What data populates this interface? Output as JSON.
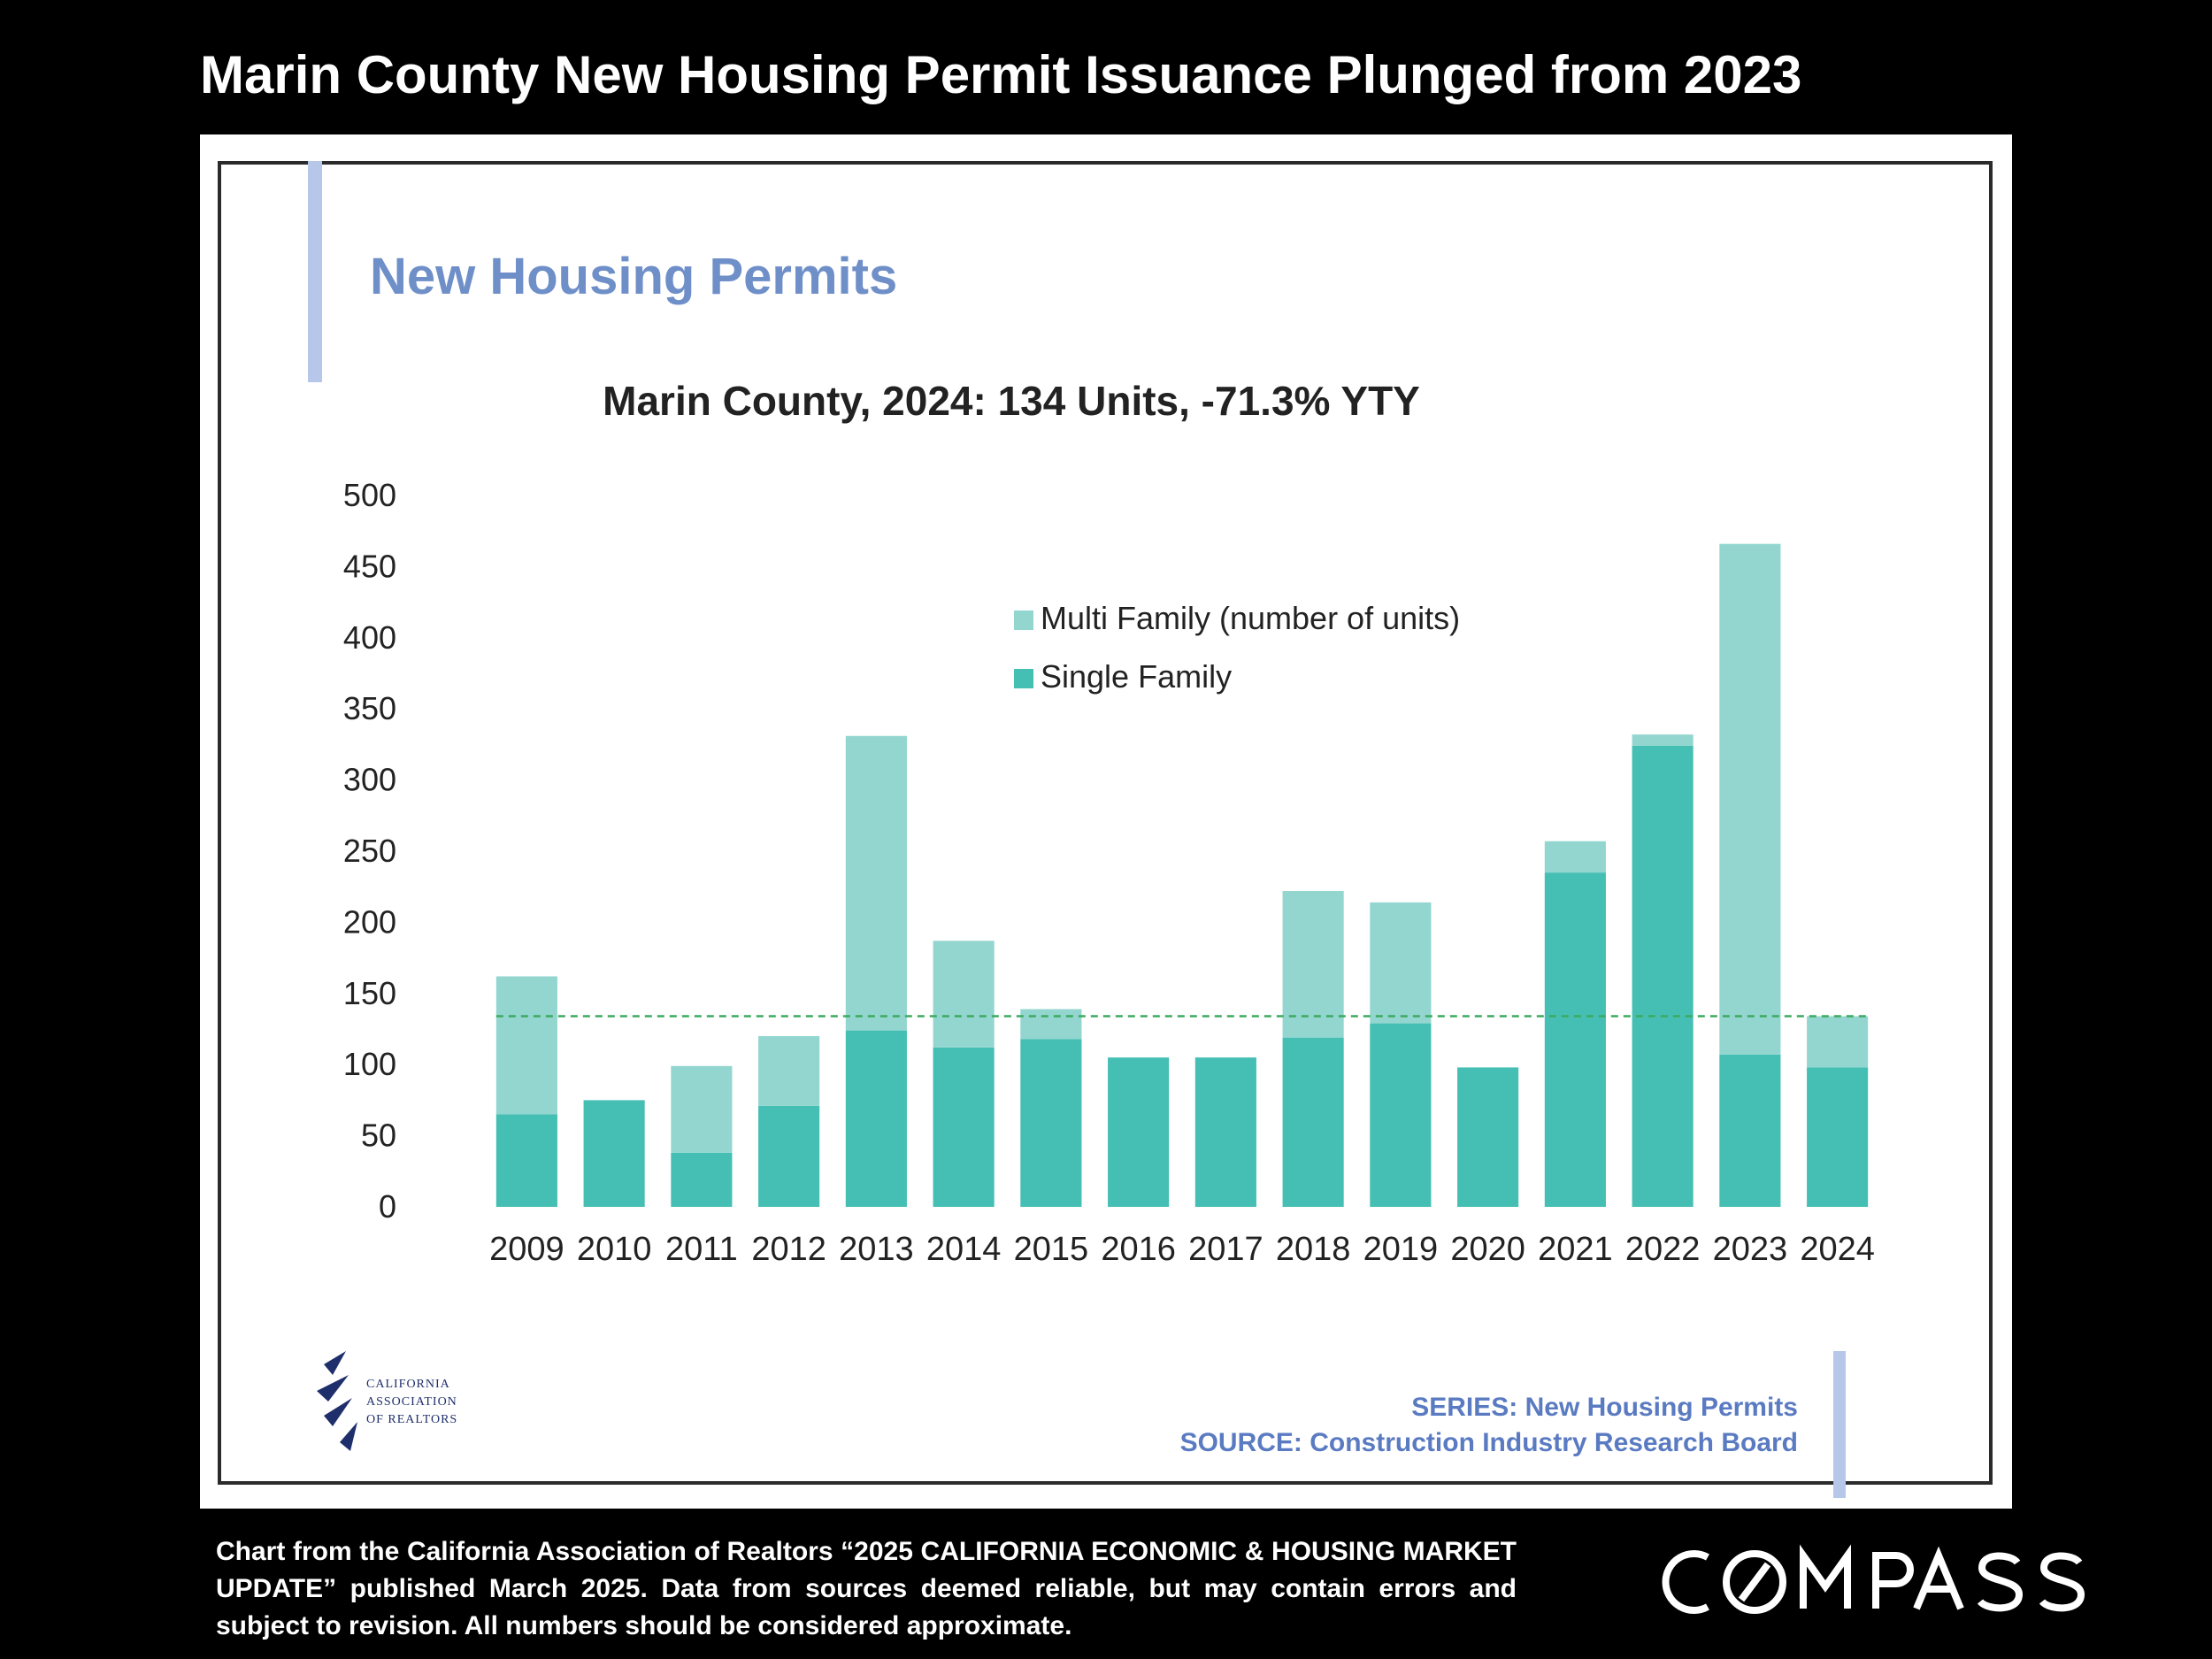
{
  "slide": {
    "title": "Marin County New Housing Permit Issuance Plunged from 2023",
    "caption": "Chart from the California Association of Realtors “2025 CALIFORNIA ECONOMIC & HOUSING MARKET UPDATE” published March 2025. Data from sources deemed reliable, but may contain errors and subject to revision. All numbers should be considered approximate.",
    "brand": "COMPASS"
  },
  "panel": {
    "heading": "New Housing Permits",
    "org_logo_lines": [
      "CALIFORNIA",
      "ASSOCIATION",
      "OF REALTORS"
    ],
    "series_note": "SERIES: New Housing Permits",
    "source_note": "SOURCE:  Construction Industry Research Board"
  },
  "colors": {
    "single_family": "#45bfb4",
    "multi_family": "#93d6d0",
    "heading": "#6f8fc9",
    "accent_bar": "#b6c7ea",
    "reference_line": "#3daa5f",
    "footer_text": "#5a7bc2"
  },
  "chart_data": {
    "type": "bar",
    "stacked": true,
    "title": "Marin County, 2024: 134 Units, -71.3% YTY",
    "xlabel": "",
    "ylabel": "",
    "ylim": [
      0,
      500
    ],
    "yticks": [
      0,
      50,
      100,
      150,
      200,
      250,
      300,
      350,
      400,
      450,
      500
    ],
    "categories": [
      "2009",
      "2010",
      "2011",
      "2012",
      "2013",
      "2014",
      "2015",
      "2016",
      "2017",
      "2018",
      "2019",
      "2020",
      "2021",
      "2022",
      "2023",
      "2024"
    ],
    "series": [
      {
        "name": "Single Family",
        "values": [
          65,
          75,
          38,
          71,
          124,
          112,
          118,
          105,
          105,
          119,
          129,
          98,
          235,
          324,
          107,
          98
        ]
      },
      {
        "name": "Multi Family (number of units)",
        "values": [
          97,
          0,
          61,
          49,
          207,
          75,
          21,
          0,
          0,
          103,
          85,
          0,
          22,
          8,
          359,
          36
        ]
      }
    ],
    "reference_line": {
      "value": 134,
      "style": "dashed"
    },
    "legend": {
      "position": "top-center"
    },
    "grid": false
  }
}
